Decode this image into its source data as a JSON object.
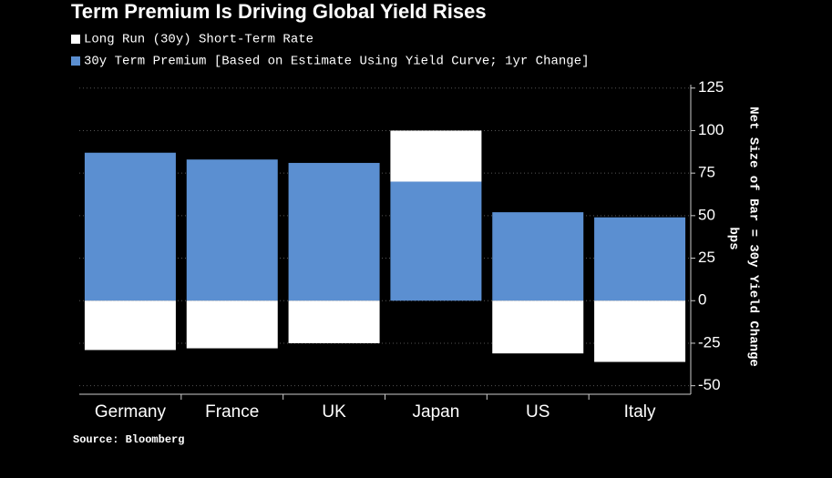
{
  "chart_data": {
    "type": "stacked-bar",
    "title": "Term Premium Is Driving Global Yield Rises",
    "categories": [
      "Germany",
      "France",
      "UK",
      "Japan",
      "US",
      "Italy"
    ],
    "series": [
      {
        "name": "30y Term Premium [Based on Estimate Using Yield Curve; 1yr Change]",
        "color": "#5b8fd1",
        "values": [
          87,
          83,
          81,
          70,
          52,
          49
        ]
      },
      {
        "name": "Long Run (30y) Short-Term Rate",
        "color": "#ffffff",
        "values": [
          -29,
          -28,
          -25,
          30,
          -31,
          -36
        ]
      }
    ],
    "legend_order": [
      1,
      0
    ],
    "y_label": [
      "Net Size of Bar = 30y Yield Change",
      "bps"
    ],
    "ylim": [
      -55,
      127
    ],
    "yticks": [
      -50,
      -25,
      0,
      25,
      50,
      75,
      100,
      125
    ],
    "grid": true,
    "source": "Source: Bloomberg"
  }
}
